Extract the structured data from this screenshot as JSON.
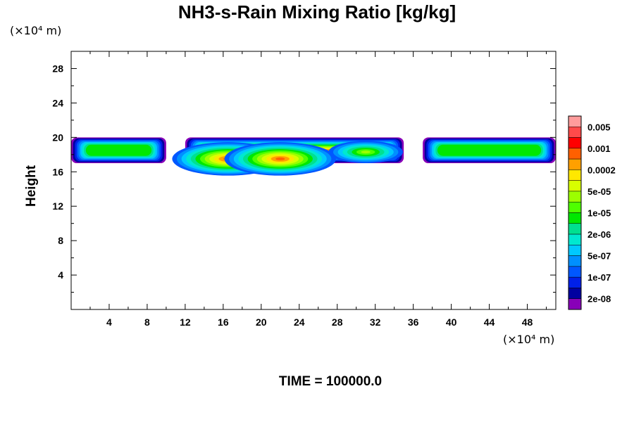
{
  "chart_data": {
    "type": "heatmap",
    "title": "NH3-s-Rain Mixing Ratio [kg/kg]",
    "ylabel": "Height",
    "xlabel": "",
    "x_unit": "(×10⁴ m)",
    "y_unit": "(×10⁴ m)",
    "xlim": [
      0,
      51
    ],
    "ylim": [
      0,
      30
    ],
    "x_ticks": [
      4,
      8,
      12,
      16,
      20,
      24,
      28,
      32,
      36,
      40,
      44,
      48
    ],
    "y_ticks": [
      4,
      8,
      12,
      16,
      20,
      24,
      28
    ],
    "colorbar": {
      "labels": [
        "0.005",
        "0.001",
        "0.0002",
        "5e-05",
        "1e-05",
        "2e-06",
        "5e-07",
        "1e-07",
        "2e-08"
      ],
      "colors": [
        "#ff9c9c",
        "#ff4a4a",
        "#ff0000",
        "#ff6000",
        "#ffa000",
        "#ffe800",
        "#d8ff00",
        "#9cff00",
        "#4eff00",
        "#00e800",
        "#00e090",
        "#00e8d0",
        "#00c8ff",
        "#0090ff",
        "#0058ff",
        "#0020e8",
        "#0000a0",
        "#8800b8"
      ]
    },
    "layer": {
      "bottom_km": 17,
      "top_km": 20,
      "segments": [
        {
          "x0": 0,
          "x1": 10,
          "level": 9
        },
        {
          "x0": 12,
          "x1": 35,
          "level": 3
        },
        {
          "x0": 37,
          "x1": 51,
          "level": 9
        }
      ],
      "peak_regions": [
        {
          "x": 16.5,
          "y": 17.5,
          "level": 3
        },
        {
          "x": 22,
          "y": 17.5,
          "level": 3
        },
        {
          "x": 31,
          "y": 18.3,
          "level": 7
        }
      ]
    },
    "grid": false
  },
  "footer": {
    "time": "TIME = 100000.0"
  }
}
